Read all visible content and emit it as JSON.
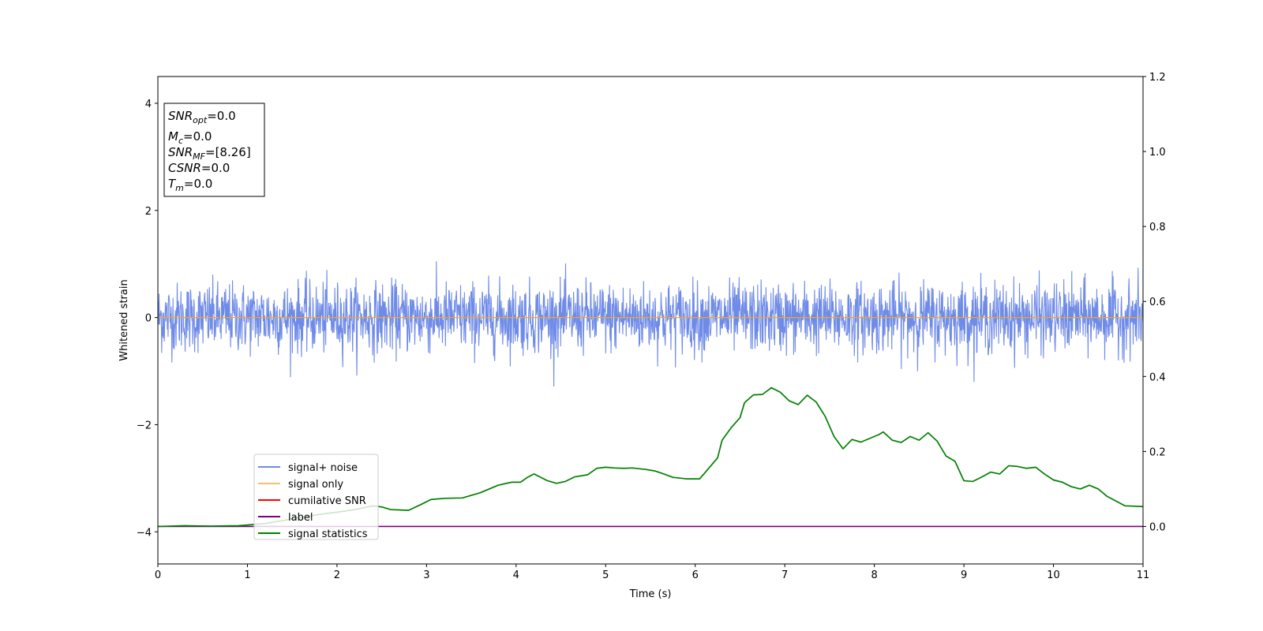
{
  "chart_data": {
    "type": "line",
    "xlabel": "Time (s)",
    "ylabel": "Whitened strain",
    "xlim": [
      0,
      11
    ],
    "ylim": [
      -4.6,
      4.5
    ],
    "y2lim": [
      -0.1,
      1.2
    ],
    "x_ticks": [
      "0",
      "1",
      "2",
      "3",
      "4",
      "5",
      "6",
      "7",
      "8",
      "9",
      "10",
      "11"
    ],
    "y_ticks": [
      "−4",
      "−2",
      "0",
      "2",
      "4"
    ],
    "y2_ticks": [
      "0.0",
      "0.2",
      "0.4",
      "0.6",
      "0.8",
      "1.0",
      "1.2"
    ],
    "colors": {
      "noise": "#6f8be8",
      "signal_only": "#f5a623",
      "cumulative": "#ff0000",
      "label": "#800080",
      "stats": "#008000"
    },
    "info_box": [
      {
        "main": "SNR",
        "sub": "opt",
        "value": "=0.0"
      },
      {
        "main": "M",
        "sub": "c",
        "value": "=0.0"
      },
      {
        "main": "SNR",
        "sub": "MF",
        "value": "=[8.26]"
      },
      {
        "main": "CSNR",
        "sub": "",
        "value": "=0.0"
      },
      {
        "main": "T",
        "sub": "m",
        "value": "=0.0"
      }
    ],
    "legend": {
      "placement": "lower-left",
      "entries": [
        {
          "label": "signal+ noise",
          "color": "#6f8be8"
        },
        {
          "label": "signal only",
          "color": "#f5c06b"
        },
        {
          "label": "cumilative SNR",
          "color": "#ff0000"
        },
        {
          "label": "label",
          "color": "#800080"
        },
        {
          "label": "signal statistics",
          "color": "#008000"
        }
      ]
    },
    "series": [
      {
        "name": "signal+ noise",
        "axis": "left",
        "kind": "noise",
        "envelope_sigma": 0.32,
        "max_abs": 1.45
      },
      {
        "name": "signal only",
        "axis": "left",
        "x": [
          0,
          11
        ],
        "y": [
          0,
          0
        ]
      },
      {
        "name": "label",
        "axis": "right",
        "x": [
          0,
          11
        ],
        "y": [
          0,
          0
        ]
      },
      {
        "name": "signal statistics",
        "axis": "right",
        "x": [
          0,
          0.3,
          0.6,
          0.9,
          1.2,
          1.5,
          1.8,
          2.0,
          2.2,
          2.4,
          2.5,
          2.6,
          2.8,
          2.95,
          3.05,
          3.2,
          3.4,
          3.6,
          3.8,
          3.95,
          4.05,
          4.12,
          4.2,
          4.35,
          4.45,
          4.55,
          4.65,
          4.8,
          4.9,
          5.0,
          5.1,
          5.2,
          5.3,
          5.45,
          5.55,
          5.65,
          5.75,
          5.9,
          6.05,
          6.15,
          6.25,
          6.3,
          6.4,
          6.5,
          6.55,
          6.65,
          6.75,
          6.85,
          6.95,
          7.05,
          7.15,
          7.25,
          7.35,
          7.45,
          7.55,
          7.65,
          7.75,
          7.85,
          7.95,
          8.05,
          8.1,
          8.2,
          8.3,
          8.4,
          8.5,
          8.6,
          8.7,
          8.8,
          8.9,
          9.0,
          9.1,
          9.2,
          9.3,
          9.4,
          9.5,
          9.6,
          9.7,
          9.8,
          9.9,
          10.0,
          10.1,
          10.2,
          10.3,
          10.4,
          10.5,
          10.6,
          10.8,
          11.0
        ],
        "y": [
          0.0,
          0.002,
          0.001,
          0.002,
          0.008,
          0.02,
          0.032,
          0.038,
          0.045,
          0.055,
          0.052,
          0.045,
          0.043,
          0.06,
          0.072,
          0.075,
          0.076,
          0.09,
          0.11,
          0.118,
          0.118,
          0.13,
          0.14,
          0.122,
          0.115,
          0.12,
          0.132,
          0.138,
          0.155,
          0.158,
          0.156,
          0.155,
          0.156,
          0.152,
          0.148,
          0.14,
          0.131,
          0.127,
          0.127,
          0.155,
          0.183,
          0.23,
          0.263,
          0.29,
          0.33,
          0.351,
          0.352,
          0.37,
          0.358,
          0.335,
          0.325,
          0.35,
          0.332,
          0.294,
          0.24,
          0.207,
          0.232,
          0.225,
          0.235,
          0.245,
          0.252,
          0.23,
          0.224,
          0.24,
          0.23,
          0.25,
          0.228,
          0.188,
          0.174,
          0.122,
          0.12,
          0.132,
          0.145,
          0.14,
          0.162,
          0.16,
          0.155,
          0.158,
          0.14,
          0.124,
          0.118,
          0.106,
          0.1,
          0.11,
          0.1,
          0.08,
          0.055,
          0.053
        ]
      }
    ]
  }
}
